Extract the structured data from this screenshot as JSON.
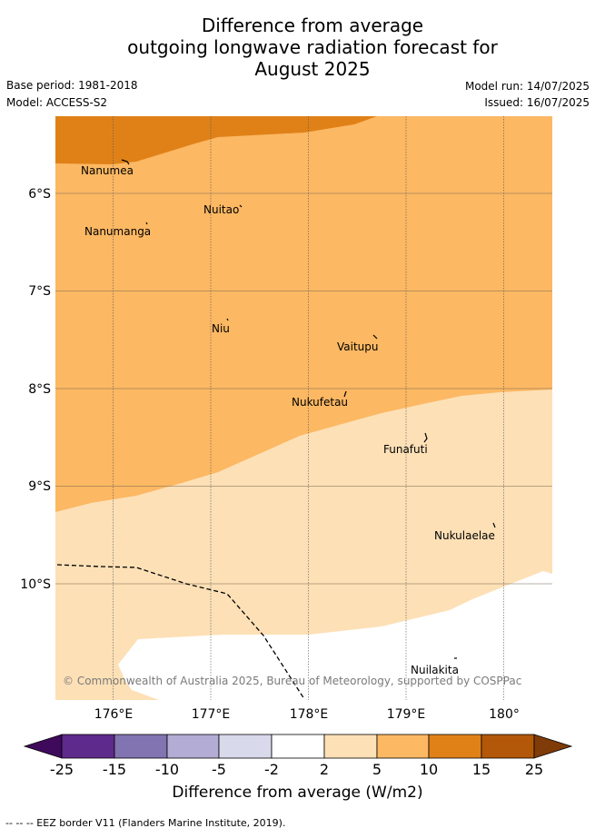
{
  "title": {
    "line1": "Difference from average",
    "line2": "outgoing longwave radiation forecast for",
    "line3": "August 2025"
  },
  "meta": {
    "base_period": "Base period: 1981-2018",
    "model": "Model: ACCESS-S2",
    "model_run": "Model run: 14/07/2025",
    "issued": "Issued: 16/07/2025"
  },
  "map": {
    "lat_labels": [
      "6°S",
      "7°S",
      "8°S",
      "9°S",
      "10°S"
    ],
    "lon_labels": [
      "176°E",
      "177°E",
      "178°E",
      "179°E",
      "180°"
    ],
    "places": [
      "Nanumea",
      "Nuitao",
      "Nanumanga",
      "Niu",
      "Vaitupu",
      "Nukufetau",
      "Funafuti",
      "Nukulaelae",
      "Nuilakita"
    ],
    "copyright": "© Commonwealth of Australia 2025, Bureau of Meteorology, supported by COSPPac"
  },
  "colorbar": {
    "ticks": [
      "-25",
      "-15",
      "-10",
      "-5",
      "-2",
      "2",
      "5",
      "10",
      "15",
      "25"
    ],
    "colors": [
      "#3f0a5c",
      "#5e2a8c",
      "#8174b0",
      "#b3acd4",
      "#d9d9ec",
      "#ffffff",
      "#fde0b6",
      "#fcb863",
      "#e08118",
      "#b35808",
      "#7f3b08"
    ],
    "label": "Difference from average (W/m2)"
  },
  "footnote": "--  --  -- EEZ border V11 (Flanders Marine Institute, 2019)."
}
